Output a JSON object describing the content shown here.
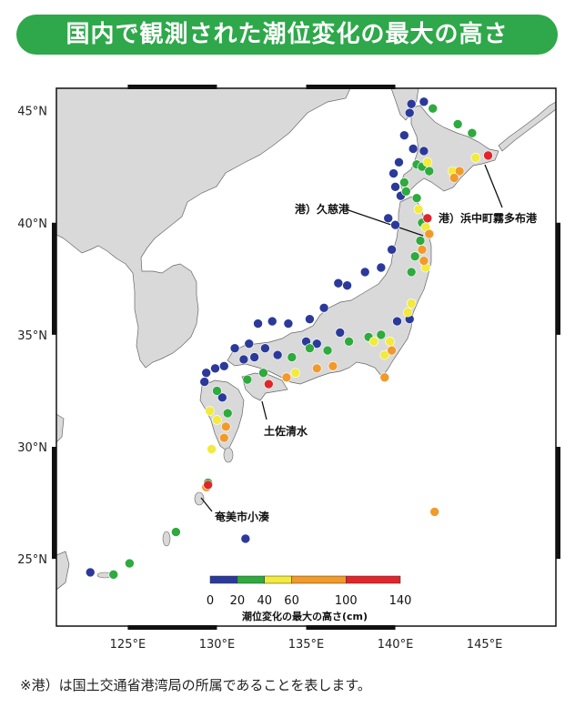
{
  "title": "国内で観測された潮位変化の最大の高さ",
  "footnote": "※港）は国土交通省港湾局の所属であることを表します。",
  "map": {
    "lat_labels": [
      "45°N",
      "40°N",
      "35°N",
      "30°N",
      "25°N"
    ],
    "lon_labels": [
      "125°E",
      "130°E",
      "135°E",
      "140°E",
      "145°E"
    ],
    "annotations": [
      "港）久慈港",
      "港）浜中町霧多布港",
      "土佐清水",
      "奄美市小湊"
    ]
  },
  "legend": {
    "title": "潮位変化の最大の高さ(cm)",
    "ticks": [
      "0",
      "20",
      "40",
      "60",
      "100",
      "140"
    ],
    "colors": [
      "#2b3a9a",
      "#2eaa3e",
      "#f2ea3c",
      "#f19a2b",
      "#e0262b"
    ]
  },
  "chart_data": {
    "type": "scatter",
    "title": "国内で観測された潮位変化の最大の高さ",
    "xlabel": "",
    "ylabel": "",
    "xlim": [
      121,
      149
    ],
    "ylim": [
      22,
      46
    ],
    "color_scale": {
      "breaks": [
        0,
        20,
        40,
        60,
        100,
        140
      ],
      "label": "潮位変化の最大の高さ(cm)"
    },
    "series": [
      {
        "name": "0-20",
        "color": "#2b3a9a",
        "points": [
          [
            140.9,
            45.3
          ],
          [
            141.6,
            45.4
          ],
          [
            140.8,
            44.9
          ],
          [
            140.5,
            43.9
          ],
          [
            141.0,
            43.3
          ],
          [
            141.6,
            43.2
          ],
          [
            140.2,
            42.7
          ],
          [
            139.9,
            42.2
          ],
          [
            140.0,
            41.6
          ],
          [
            140.3,
            41.2
          ],
          [
            139.6,
            40.2
          ],
          [
            140.0,
            39.9
          ],
          [
            139.8,
            38.8
          ],
          [
            139.2,
            38.0
          ],
          [
            138.3,
            37.8
          ],
          [
            137.3,
            37.2
          ],
          [
            136.8,
            37.3
          ],
          [
            136.0,
            36.2
          ],
          [
            135.2,
            35.7
          ],
          [
            134.0,
            35.5
          ],
          [
            133.1,
            35.6
          ],
          [
            132.3,
            35.5
          ],
          [
            131.8,
            34.6
          ],
          [
            131.0,
            34.4
          ],
          [
            130.4,
            33.6
          ],
          [
            129.9,
            33.5
          ],
          [
            129.4,
            33.3
          ],
          [
            129.3,
            32.9
          ],
          [
            130.3,
            32.2
          ],
          [
            131.5,
            33.9
          ],
          [
            132.1,
            34.0
          ],
          [
            132.7,
            34.4
          ],
          [
            133.4,
            34.1
          ],
          [
            135.0,
            34.7
          ],
          [
            135.6,
            34.6
          ],
          [
            136.9,
            35.1
          ],
          [
            140.1,
            35.6
          ],
          [
            140.8,
            35.7
          ],
          [
            131.6,
            25.9
          ],
          [
            122.9,
            24.4
          ]
        ]
      },
      {
        "name": "20-40",
        "color": "#2eaa3e",
        "points": [
          [
            142.1,
            45.1
          ],
          [
            143.5,
            44.4
          ],
          [
            144.3,
            44.0
          ],
          [
            141.2,
            42.6
          ],
          [
            141.5,
            42.5
          ],
          [
            141.9,
            42.3
          ],
          [
            140.5,
            41.8
          ],
          [
            140.6,
            41.4
          ],
          [
            141.2,
            41.1
          ],
          [
            141.5,
            40.0
          ],
          [
            141.4,
            39.2
          ],
          [
            141.1,
            38.5
          ],
          [
            140.9,
            37.8
          ],
          [
            139.2,
            35.0
          ],
          [
            138.5,
            34.9
          ],
          [
            137.4,
            34.7
          ],
          [
            136.2,
            34.3
          ],
          [
            135.2,
            34.4
          ],
          [
            134.2,
            34.0
          ],
          [
            132.6,
            33.3
          ],
          [
            131.7,
            33.0
          ],
          [
            130.0,
            32.5
          ],
          [
            130.6,
            31.5
          ],
          [
            127.7,
            26.2
          ],
          [
            124.2,
            24.3
          ],
          [
            125.1,
            24.8
          ],
          [
            129.5,
            28.4
          ]
        ]
      },
      {
        "name": "40-60",
        "color": "#f2ea3c",
        "points": [
          [
            141.8,
            42.7
          ],
          [
            143.2,
            42.3
          ],
          [
            144.5,
            42.9
          ],
          [
            141.7,
            39.8
          ],
          [
            141.7,
            38.0
          ],
          [
            140.9,
            36.4
          ],
          [
            140.7,
            36.0
          ],
          [
            139.7,
            34.7
          ],
          [
            139.4,
            34.1
          ],
          [
            138.8,
            34.7
          ],
          [
            134.4,
            33.3
          ],
          [
            129.6,
            31.6
          ],
          [
            130.0,
            31.2
          ],
          [
            129.7,
            29.9
          ],
          [
            141.3,
            40.6
          ]
        ]
      },
      {
        "name": "60-100",
        "color": "#f19a2b",
        "points": [
          [
            143.6,
            42.3
          ],
          [
            143.3,
            42.0
          ],
          [
            141.9,
            39.5
          ],
          [
            141.6,
            38.3
          ],
          [
            141.5,
            38.8
          ],
          [
            139.8,
            34.3
          ],
          [
            139.4,
            33.1
          ],
          [
            136.5,
            33.6
          ],
          [
            135.6,
            33.5
          ],
          [
            133.9,
            33.1
          ],
          [
            130.5,
            30.9
          ],
          [
            130.4,
            30.4
          ],
          [
            142.2,
            27.1
          ],
          [
            129.4,
            28.2
          ]
        ]
      },
      {
        "name": "100-140",
        "color": "#e0262b",
        "points": [
          [
            141.8,
            40.2
          ],
          [
            145.2,
            43.0
          ],
          [
            132.9,
            32.8
          ],
          [
            129.5,
            28.3
          ]
        ]
      }
    ]
  }
}
